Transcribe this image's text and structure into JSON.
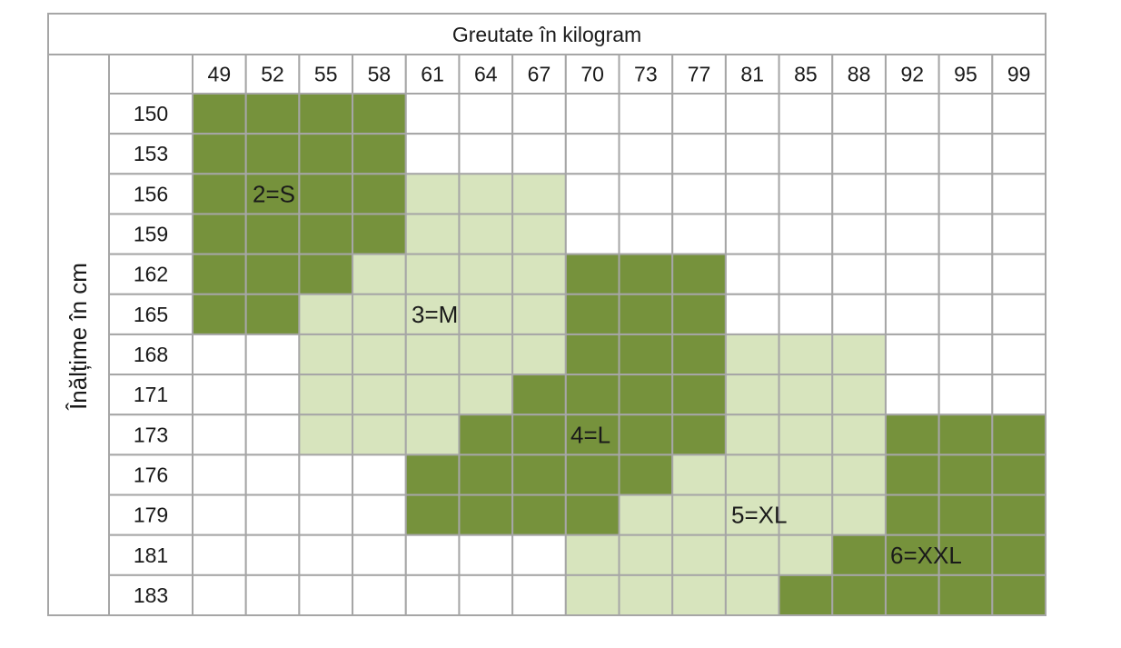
{
  "title": "Greutate în kilogram",
  "row_axis_label": "Înălțime în cm",
  "weights": [
    "49",
    "52",
    "55",
    "58",
    "61",
    "64",
    "67",
    "70",
    "73",
    "77",
    "81",
    "85",
    "88",
    "92",
    "95",
    "99"
  ],
  "heights": [
    "150",
    "153",
    "156",
    "159",
    "162",
    "165",
    "168",
    "171",
    "173",
    "176",
    "179",
    "181",
    "183"
  ],
  "cells": [
    [
      "#76923c",
      "#76923c",
      "#76923c",
      "#76923c",
      "#ffffff",
      "#ffffff",
      "#ffffff",
      "#ffffff",
      "#ffffff",
      "#ffffff",
      "#ffffff",
      "#ffffff",
      "#ffffff",
      "#ffffff",
      "#ffffff",
      "#ffffff"
    ],
    [
      "#76923c",
      "#76923c",
      "#76923c",
      "#76923c",
      "#ffffff",
      "#ffffff",
      "#ffffff",
      "#ffffff",
      "#ffffff",
      "#ffffff",
      "#ffffff",
      "#ffffff",
      "#ffffff",
      "#ffffff",
      "#ffffff",
      "#ffffff"
    ],
    [
      "#76923c",
      "#76923c",
      "#76923c",
      "#76923c",
      "#d7e4bd",
      "#d7e4bd",
      "#d7e4bd",
      "#ffffff",
      "#ffffff",
      "#ffffff",
      "#ffffff",
      "#ffffff",
      "#ffffff",
      "#ffffff",
      "#ffffff",
      "#ffffff"
    ],
    [
      "#76923c",
      "#76923c",
      "#76923c",
      "#76923c",
      "#d7e4bd",
      "#d7e4bd",
      "#d7e4bd",
      "#ffffff",
      "#ffffff",
      "#ffffff",
      "#ffffff",
      "#ffffff",
      "#ffffff",
      "#ffffff",
      "#ffffff",
      "#ffffff"
    ],
    [
      "#76923c",
      "#76923c",
      "#76923c",
      "#d7e4bd",
      "#d7e4bd",
      "#d7e4bd",
      "#d7e4bd",
      "#76923c",
      "#76923c",
      "#76923c",
      "#ffffff",
      "#ffffff",
      "#ffffff",
      "#ffffff",
      "#ffffff",
      "#ffffff"
    ],
    [
      "#76923c",
      "#76923c",
      "#d7e4bd",
      "#d7e4bd",
      "#d7e4bd",
      "#d7e4bd",
      "#d7e4bd",
      "#76923c",
      "#76923c",
      "#76923c",
      "#ffffff",
      "#ffffff",
      "#ffffff",
      "#ffffff",
      "#ffffff",
      "#ffffff"
    ],
    [
      "#ffffff",
      "#ffffff",
      "#d7e4bd",
      "#d7e4bd",
      "#d7e4bd",
      "#d7e4bd",
      "#d7e4bd",
      "#76923c",
      "#76923c",
      "#76923c",
      "#d7e4bd",
      "#d7e4bd",
      "#d7e4bd",
      "#ffffff",
      "#ffffff",
      "#ffffff"
    ],
    [
      "#ffffff",
      "#ffffff",
      "#d7e4bd",
      "#d7e4bd",
      "#d7e4bd",
      "#d7e4bd",
      "#76923c",
      "#76923c",
      "#76923c",
      "#76923c",
      "#d7e4bd",
      "#d7e4bd",
      "#d7e4bd",
      "#ffffff",
      "#ffffff",
      "#ffffff"
    ],
    [
      "#ffffff",
      "#ffffff",
      "#d7e4bd",
      "#d7e4bd",
      "#d7e4bd",
      "#76923c",
      "#76923c",
      "#76923c",
      "#76923c",
      "#76923c",
      "#d7e4bd",
      "#d7e4bd",
      "#d7e4bd",
      "#76923c",
      "#76923c",
      "#76923c"
    ],
    [
      "#ffffff",
      "#ffffff",
      "#ffffff",
      "#ffffff",
      "#76923c",
      "#76923c",
      "#76923c",
      "#76923c",
      "#76923c",
      "#d7e4bd",
      "#d7e4bd",
      "#d7e4bd",
      "#d7e4bd",
      "#76923c",
      "#76923c",
      "#76923c"
    ],
    [
      "#ffffff",
      "#ffffff",
      "#ffffff",
      "#ffffff",
      "#76923c",
      "#76923c",
      "#76923c",
      "#76923c",
      "#d7e4bd",
      "#d7e4bd",
      "#d7e4bd",
      "#d7e4bd",
      "#d7e4bd",
      "#76923c",
      "#76923c",
      "#76923c"
    ],
    [
      "#ffffff",
      "#ffffff",
      "#ffffff",
      "#ffffff",
      "#ffffff",
      "#ffffff",
      "#ffffff",
      "#d7e4bd",
      "#d7e4bd",
      "#d7e4bd",
      "#d7e4bd",
      "#d7e4bd",
      "#76923c",
      "#76923c",
      "#76923c",
      "#76923c"
    ],
    [
      "#ffffff",
      "#ffffff",
      "#ffffff",
      "#ffffff",
      "#ffffff",
      "#ffffff",
      "#ffffff",
      "#d7e4bd",
      "#d7e4bd",
      "#d7e4bd",
      "#d7e4bd",
      "#76923c",
      "#76923c",
      "#76923c",
      "#76923c",
      "#76923c"
    ]
  ],
  "size_labels": [
    "2=S",
    "3=M",
    "4=L",
    "5=XL",
    "6=XXL"
  ]
}
